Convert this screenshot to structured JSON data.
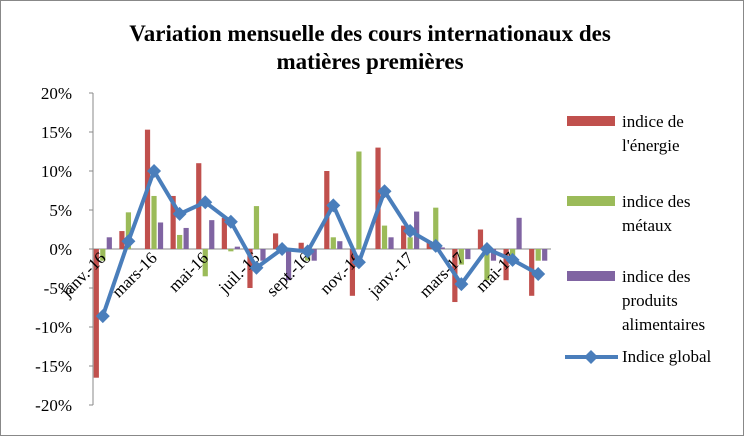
{
  "chart_data": {
    "type": "bar+line",
    "title": "Variation mensuelle des cours internationaux des matières premières",
    "categories": [
      "janv.-16",
      null,
      "mars-16",
      null,
      "mai-16",
      null,
      "juil.-16",
      null,
      "sept.-16",
      null,
      "nov.-16",
      null,
      "janv.-17",
      null,
      "mars-17",
      null,
      "mai-17",
      null
    ],
    "series": [
      {
        "name": "indice de l'énergie",
        "type": "bar",
        "color": "#c0504d",
        "values": [
          -16.5,
          2.3,
          15.3,
          6.8,
          11,
          4,
          -5,
          2,
          0.8,
          10,
          -6,
          13,
          3,
          1,
          -6.8,
          2.5,
          -4,
          -6
        ]
      },
      {
        "name": "indice des métaux",
        "type": "bar",
        "color": "#9bbb59",
        "values": [
          -1.5,
          4.7,
          6.8,
          1.8,
          -3.5,
          -0.3,
          5.5,
          -0.5,
          -1.5,
          1.5,
          12.5,
          3,
          1.5,
          5.3,
          -2,
          -4,
          -1.5,
          -1.5
        ]
      },
      {
        "name": "indice des produits alimentaires",
        "type": "bar",
        "color": "#8064a2",
        "values": [
          1.5,
          0,
          3.4,
          2.7,
          3.7,
          0.3,
          -1.5,
          -4,
          -1.5,
          1,
          0,
          1.5,
          4.8,
          0.2,
          -1.3,
          -1.5,
          4,
          -1.5
        ]
      },
      {
        "name": "Indice global",
        "type": "line",
        "color": "#4a7ebb",
        "values": [
          -8.6,
          1,
          10,
          4.5,
          6,
          3.5,
          -2.4,
          0,
          -0.3,
          5.6,
          -1.7,
          7.4,
          2.3,
          0.4,
          -4.5,
          0,
          -1.4,
          -3.2
        ]
      }
    ],
    "ylim": [
      -20,
      20
    ],
    "yticks": [
      {
        "value": -20,
        "label": "-20%"
      },
      {
        "value": -15,
        "label": "-15%"
      },
      {
        "value": -10,
        "label": "-10%"
      },
      {
        "value": -5,
        "label": "-5%"
      },
      {
        "value": 0,
        "label": "0%"
      },
      {
        "value": 5,
        "label": "5%"
      },
      {
        "value": 10,
        "label": "10%"
      },
      {
        "value": 15,
        "label": "15%"
      },
      {
        "value": 20,
        "label": "20%"
      }
    ],
    "grid": false,
    "legend": "right"
  }
}
